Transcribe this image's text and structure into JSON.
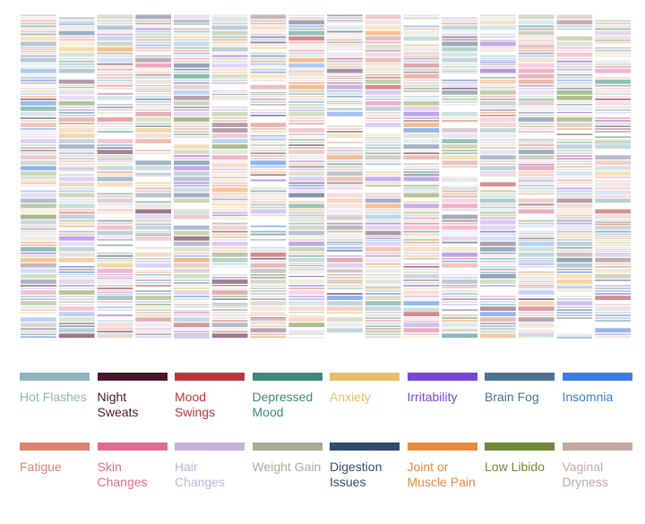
{
  "chart_data": {
    "type": "heatmap",
    "title": "",
    "description_of_values": "",
    "columns": 16,
    "rows_per_column": 60,
    "legend": [
      {
        "label": "Hot Flashes",
        "color": "#8fb5bd"
      },
      {
        "label": "Night Sweats",
        "color": "#4a1730"
      },
      {
        "label": "Mood Swings",
        "color": "#b9373d"
      },
      {
        "label": "Depressed Mood",
        "color": "#3d8a7b"
      },
      {
        "label": "Anxiety",
        "color": "#e3bf6a"
      },
      {
        "label": "Irritability",
        "color": "#7a45d9"
      },
      {
        "label": "Brain Fog",
        "color": "#4c7291"
      },
      {
        "label": "Insomnia",
        "color": "#3b7ce6"
      },
      {
        "label": "Fatigue",
        "color": "#dd8270"
      },
      {
        "label": "Skin Changes",
        "color": "#e36a94"
      },
      {
        "label": "Hair Changes",
        "color": "#c5b2dd"
      },
      {
        "label": "Weight Gain",
        "color": "#a9ae94"
      },
      {
        "label": "Digestion Issues",
        "color": "#2f4a73"
      },
      {
        "label": "Joint or Muscle Pain",
        "color": "#e98a3a"
      },
      {
        "label": "Low Libido",
        "color": "#6e8a35"
      },
      {
        "label": "Vaginal Dryness",
        "color": "#c2aaa0"
      }
    ]
  }
}
